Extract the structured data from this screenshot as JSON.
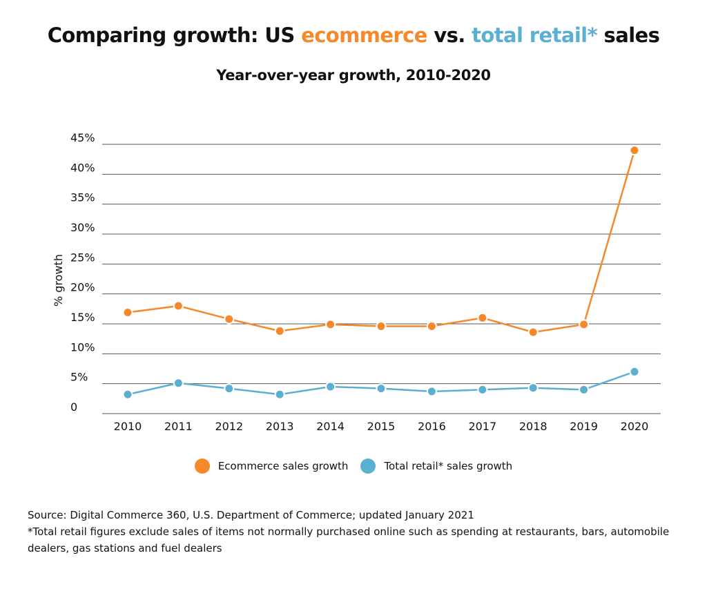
{
  "title": {
    "prefix": "Comparing growth: US ",
    "ecommerce": "ecommerce",
    "middle": " vs. ",
    "retail": "total retail*",
    "suffix": " sales"
  },
  "subtitle": "Year-over-year growth, 2010-2020",
  "colors": {
    "ecommerce": "#f5892a",
    "retail": "#5bafd0",
    "gridline": "#555555",
    "text": "#111111"
  },
  "legend": {
    "ecommerce_label": "Ecommerce sales growth",
    "retail_label": "Total retail* sales growth"
  },
  "notes": {
    "source": "Source: Digital Commerce 360,  U.S. Department of Commerce; updated January 2021",
    "footnote": "*Total retail figures exclude sales of items not normally purchased online such as spending at restaurants, bars, automobile dealers, gas stations and fuel dealers"
  },
  "chart_data": {
    "type": "line",
    "title": "Comparing growth: US ecommerce vs. total retail* sales",
    "subtitle": "Year-over-year growth, 2010-2020",
    "xlabel": "",
    "ylabel": "% growth",
    "x": [
      "2010",
      "2011",
      "2012",
      "2013",
      "2014",
      "2015",
      "2016",
      "2017",
      "2018",
      "2019",
      "2020"
    ],
    "ylim": [
      0,
      45
    ],
    "yticks": [
      0,
      5,
      10,
      15,
      20,
      25,
      30,
      35,
      40,
      45
    ],
    "ytick_labels": [
      "0",
      "5%",
      "10%",
      "15%",
      "20%",
      "25%",
      "30%",
      "35%",
      "40%",
      "45%"
    ],
    "grid": true,
    "legend_position": "bottom",
    "series": [
      {
        "name": "Ecommerce sales growth",
        "key": "ecommerce",
        "values": [
          16.9,
          18.0,
          15.8,
          13.8,
          14.9,
          14.6,
          14.6,
          16.0,
          13.6,
          14.9,
          44.0
        ]
      },
      {
        "name": "Total retail* sales growth",
        "key": "retail",
        "values": [
          3.2,
          5.1,
          4.2,
          3.2,
          4.5,
          4.2,
          3.7,
          4.0,
          4.3,
          4.0,
          7.0
        ]
      }
    ]
  }
}
